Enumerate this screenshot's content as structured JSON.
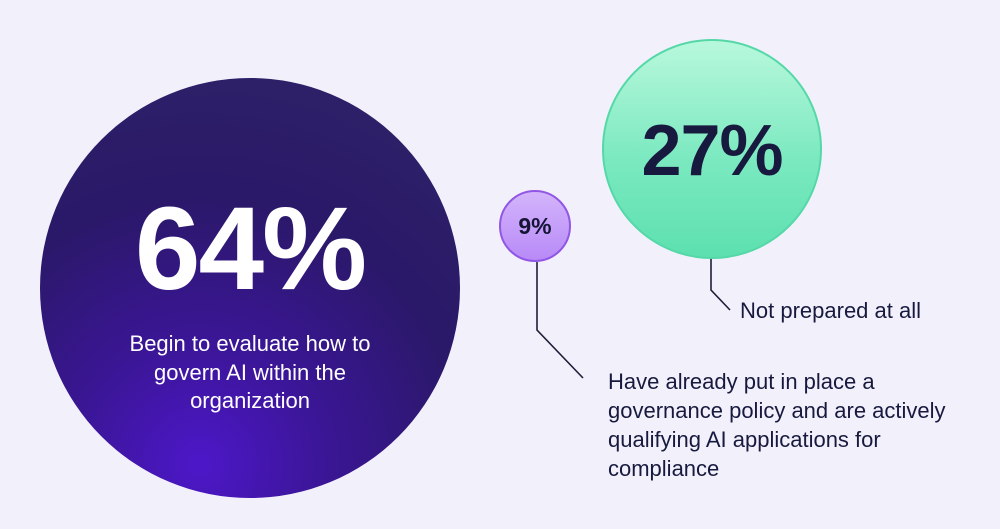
{
  "chart_data": {
    "type": "bubble",
    "title": "",
    "series": [
      {
        "value": 64,
        "value_label": "64%",
        "label": "Begin to evaluate how to govern AI within the organization",
        "color": "#2a1868"
      },
      {
        "value": 27,
        "value_label": "27%",
        "label": "Not prepared at all",
        "color": "#7be9c0"
      },
      {
        "value": 9,
        "value_label": "9%",
        "label": "Have already put in place a governance policy and are actively qualifying AI applications for compliance",
        "color": "#b88af7"
      }
    ]
  },
  "colors": {
    "background": "#f2f1fb",
    "text_dark": "#171a3e",
    "leader_line": "#1f1f3a"
  }
}
